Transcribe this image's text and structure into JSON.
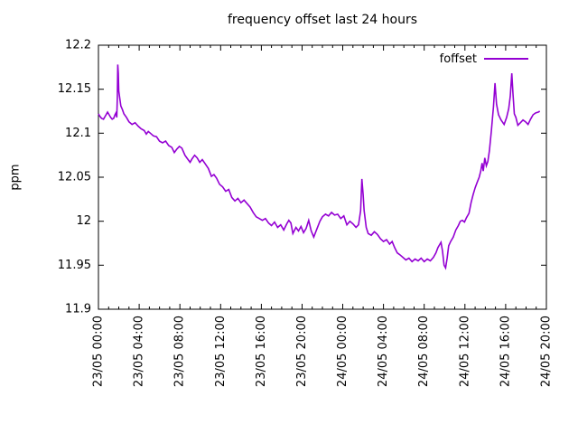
{
  "chart_data": {
    "type": "line",
    "title": "frequency offset last 24 hours",
    "xlabel": "",
    "ylabel": "ppm",
    "grid": false,
    "background_color": "#ffffff",
    "axis_color": "#000000",
    "legend": {
      "label": "foffset",
      "position": "top-right-inside",
      "color": "#9400d3"
    },
    "x_axis": {
      "range_hours": [
        0,
        44
      ],
      "major_tick_interval_hours": 4,
      "minor_tick_interval_hours": 1,
      "tick_hours": [
        0,
        4,
        8,
        12,
        16,
        20,
        24,
        28,
        32,
        36,
        40,
        44
      ],
      "tick_labels": [
        "23/05 00:00",
        "23/05 04:00",
        "23/05 08:00",
        "23/05 12:00",
        "23/05 16:00",
        "23/05 20:00",
        "24/05 00:00",
        "24/05 04:00",
        "24/05 08:00",
        "24/05 12:00",
        "24/05 16:00",
        "24/05 20:00"
      ]
    },
    "y_axis": {
      "range": [
        11.9,
        12.2
      ],
      "tick_values": [
        11.9,
        11.95,
        12.0,
        12.05,
        12.1,
        12.15,
        12.2
      ],
      "tick_labels": [
        "11.9",
        "11.95",
        "12",
        "12.05",
        "12.1",
        "12.15",
        "12.2"
      ]
    },
    "series": [
      {
        "name": "foffset",
        "color": "#9400d3",
        "points_format": [
          "hours_since_23_05_00_00",
          "ppm"
        ],
        "points": [
          [
            0,
            12.122
          ],
          [
            0.15,
            12.119
          ],
          [
            0.3,
            12.117
          ],
          [
            0.5,
            12.116
          ],
          [
            0.7,
            12.12
          ],
          [
            0.9,
            12.124
          ],
          [
            1.05,
            12.121
          ],
          [
            1.2,
            12.118
          ],
          [
            1.35,
            12.116
          ],
          [
            1.5,
            12.117
          ],
          [
            1.62,
            12.121
          ],
          [
            1.72,
            12.123
          ],
          [
            1.8,
            12.118
          ],
          [
            1.85,
            12.14
          ],
          [
            1.9,
            12.178
          ],
          [
            1.95,
            12.168
          ],
          [
            2.0,
            12.148
          ],
          [
            2.1,
            12.139
          ],
          [
            2.2,
            12.131
          ],
          [
            2.35,
            12.127
          ],
          [
            2.5,
            12.122
          ],
          [
            2.75,
            12.118
          ],
          [
            3.0,
            12.113
          ],
          [
            3.3,
            12.11
          ],
          [
            3.6,
            12.112
          ],
          [
            3.9,
            12.108
          ],
          [
            4.2,
            12.105
          ],
          [
            4.5,
            12.103
          ],
          [
            4.7,
            12.099
          ],
          [
            4.9,
            12.102
          ],
          [
            5.1,
            12.1
          ],
          [
            5.4,
            12.097
          ],
          [
            5.7,
            12.096
          ],
          [
            6.0,
            12.091
          ],
          [
            6.3,
            12.089
          ],
          [
            6.6,
            12.091
          ],
          [
            6.9,
            12.086
          ],
          [
            7.2,
            12.084
          ],
          [
            7.45,
            12.078
          ],
          [
            7.7,
            12.082
          ],
          [
            7.95,
            12.085
          ],
          [
            8.2,
            12.083
          ],
          [
            8.5,
            12.075
          ],
          [
            8.75,
            12.071
          ],
          [
            9.0,
            12.067
          ],
          [
            9.2,
            12.071
          ],
          [
            9.45,
            12.075
          ],
          [
            9.7,
            12.072
          ],
          [
            9.95,
            12.067
          ],
          [
            10.2,
            12.07
          ],
          [
            10.5,
            12.065
          ],
          [
            10.8,
            12.06
          ],
          [
            11.1,
            12.051
          ],
          [
            11.35,
            12.053
          ],
          [
            11.6,
            12.049
          ],
          [
            11.9,
            12.042
          ],
          [
            12.2,
            12.039
          ],
          [
            12.5,
            12.034
          ],
          [
            12.8,
            12.036
          ],
          [
            13.1,
            12.027
          ],
          [
            13.4,
            12.023
          ],
          [
            13.7,
            12.026
          ],
          [
            14.0,
            12.021
          ],
          [
            14.3,
            12.024
          ],
          [
            14.6,
            12.02
          ],
          [
            14.9,
            12.016
          ],
          [
            15.2,
            12.01
          ],
          [
            15.5,
            12.005
          ],
          [
            15.8,
            12.003
          ],
          [
            16.1,
            12.001
          ],
          [
            16.4,
            12.003
          ],
          [
            16.7,
            11.998
          ],
          [
            17.0,
            11.995
          ],
          [
            17.3,
            11.999
          ],
          [
            17.6,
            11.993
          ],
          [
            17.9,
            11.996
          ],
          [
            18.2,
            11.99
          ],
          [
            18.5,
            11.997
          ],
          [
            18.7,
            12.001
          ],
          [
            18.9,
            11.998
          ],
          [
            19.1,
            11.986
          ],
          [
            19.4,
            11.993
          ],
          [
            19.65,
            11.989
          ],
          [
            19.9,
            11.994
          ],
          [
            20.15,
            11.987
          ],
          [
            20.4,
            11.992
          ],
          [
            20.65,
            12.001
          ],
          [
            20.9,
            11.989
          ],
          [
            21.15,
            11.982
          ],
          [
            21.45,
            11.991
          ],
          [
            21.75,
            12.0
          ],
          [
            22.0,
            12.005
          ],
          [
            22.3,
            12.008
          ],
          [
            22.6,
            12.006
          ],
          [
            22.9,
            12.01
          ],
          [
            23.2,
            12.007
          ],
          [
            23.5,
            12.008
          ],
          [
            23.8,
            12.003
          ],
          [
            24.1,
            12.006
          ],
          [
            24.4,
            11.996
          ],
          [
            24.7,
            12.0
          ],
          [
            25.0,
            11.997
          ],
          [
            25.3,
            11.993
          ],
          [
            25.55,
            11.996
          ],
          [
            25.75,
            12.012
          ],
          [
            25.88,
            12.048
          ],
          [
            26.0,
            12.03
          ],
          [
            26.1,
            12.012
          ],
          [
            26.3,
            11.993
          ],
          [
            26.5,
            11.986
          ],
          [
            26.8,
            11.984
          ],
          [
            27.1,
            11.988
          ],
          [
            27.4,
            11.985
          ],
          [
            27.7,
            11.98
          ],
          [
            28.0,
            11.977
          ],
          [
            28.3,
            11.979
          ],
          [
            28.6,
            11.974
          ],
          [
            28.85,
            11.977
          ],
          [
            29.1,
            11.97
          ],
          [
            29.35,
            11.964
          ],
          [
            29.6,
            11.962
          ],
          [
            29.9,
            11.959
          ],
          [
            30.2,
            11.956
          ],
          [
            30.5,
            11.958
          ],
          [
            30.8,
            11.954
          ],
          [
            31.1,
            11.957
          ],
          [
            31.4,
            11.955
          ],
          [
            31.7,
            11.958
          ],
          [
            32.0,
            11.954
          ],
          [
            32.3,
            11.957
          ],
          [
            32.6,
            11.955
          ],
          [
            32.9,
            11.959
          ],
          [
            33.15,
            11.964
          ],
          [
            33.35,
            11.97
          ],
          [
            33.5,
            11.973
          ],
          [
            33.65,
            11.976
          ],
          [
            33.8,
            11.966
          ],
          [
            33.95,
            11.95
          ],
          [
            34.1,
            11.947
          ],
          [
            34.25,
            11.958
          ],
          [
            34.4,
            11.972
          ],
          [
            34.6,
            11.977
          ],
          [
            34.85,
            11.982
          ],
          [
            35.1,
            11.99
          ],
          [
            35.35,
            11.995
          ],
          [
            35.55,
            12.0
          ],
          [
            35.75,
            12.001
          ],
          [
            35.95,
            11.999
          ],
          [
            36.15,
            12.004
          ],
          [
            36.4,
            12.009
          ],
          [
            36.6,
            12.021
          ],
          [
            36.8,
            12.03
          ],
          [
            37.0,
            12.038
          ],
          [
            37.2,
            12.044
          ],
          [
            37.4,
            12.05
          ],
          [
            37.55,
            12.057
          ],
          [
            37.68,
            12.066
          ],
          [
            37.8,
            12.057
          ],
          [
            37.95,
            12.072
          ],
          [
            38.1,
            12.063
          ],
          [
            38.25,
            12.068
          ],
          [
            38.4,
            12.08
          ],
          [
            38.6,
            12.103
          ],
          [
            38.8,
            12.13
          ],
          [
            38.95,
            12.157
          ],
          [
            39.1,
            12.133
          ],
          [
            39.3,
            12.121
          ],
          [
            39.55,
            12.115
          ],
          [
            39.85,
            12.11
          ],
          [
            40.1,
            12.118
          ],
          [
            40.3,
            12.128
          ],
          [
            40.45,
            12.142
          ],
          [
            40.6,
            12.168
          ],
          [
            40.72,
            12.145
          ],
          [
            40.85,
            12.122
          ],
          [
            41.0,
            12.118
          ],
          [
            41.2,
            12.109
          ],
          [
            41.45,
            12.112
          ],
          [
            41.7,
            12.115
          ],
          [
            41.95,
            12.113
          ],
          [
            42.2,
            12.11
          ],
          [
            42.45,
            12.116
          ],
          [
            42.7,
            12.121
          ],
          [
            42.95,
            12.123
          ],
          [
            43.2,
            12.124
          ],
          [
            43.35,
            12.125
          ]
        ]
      }
    ]
  }
}
